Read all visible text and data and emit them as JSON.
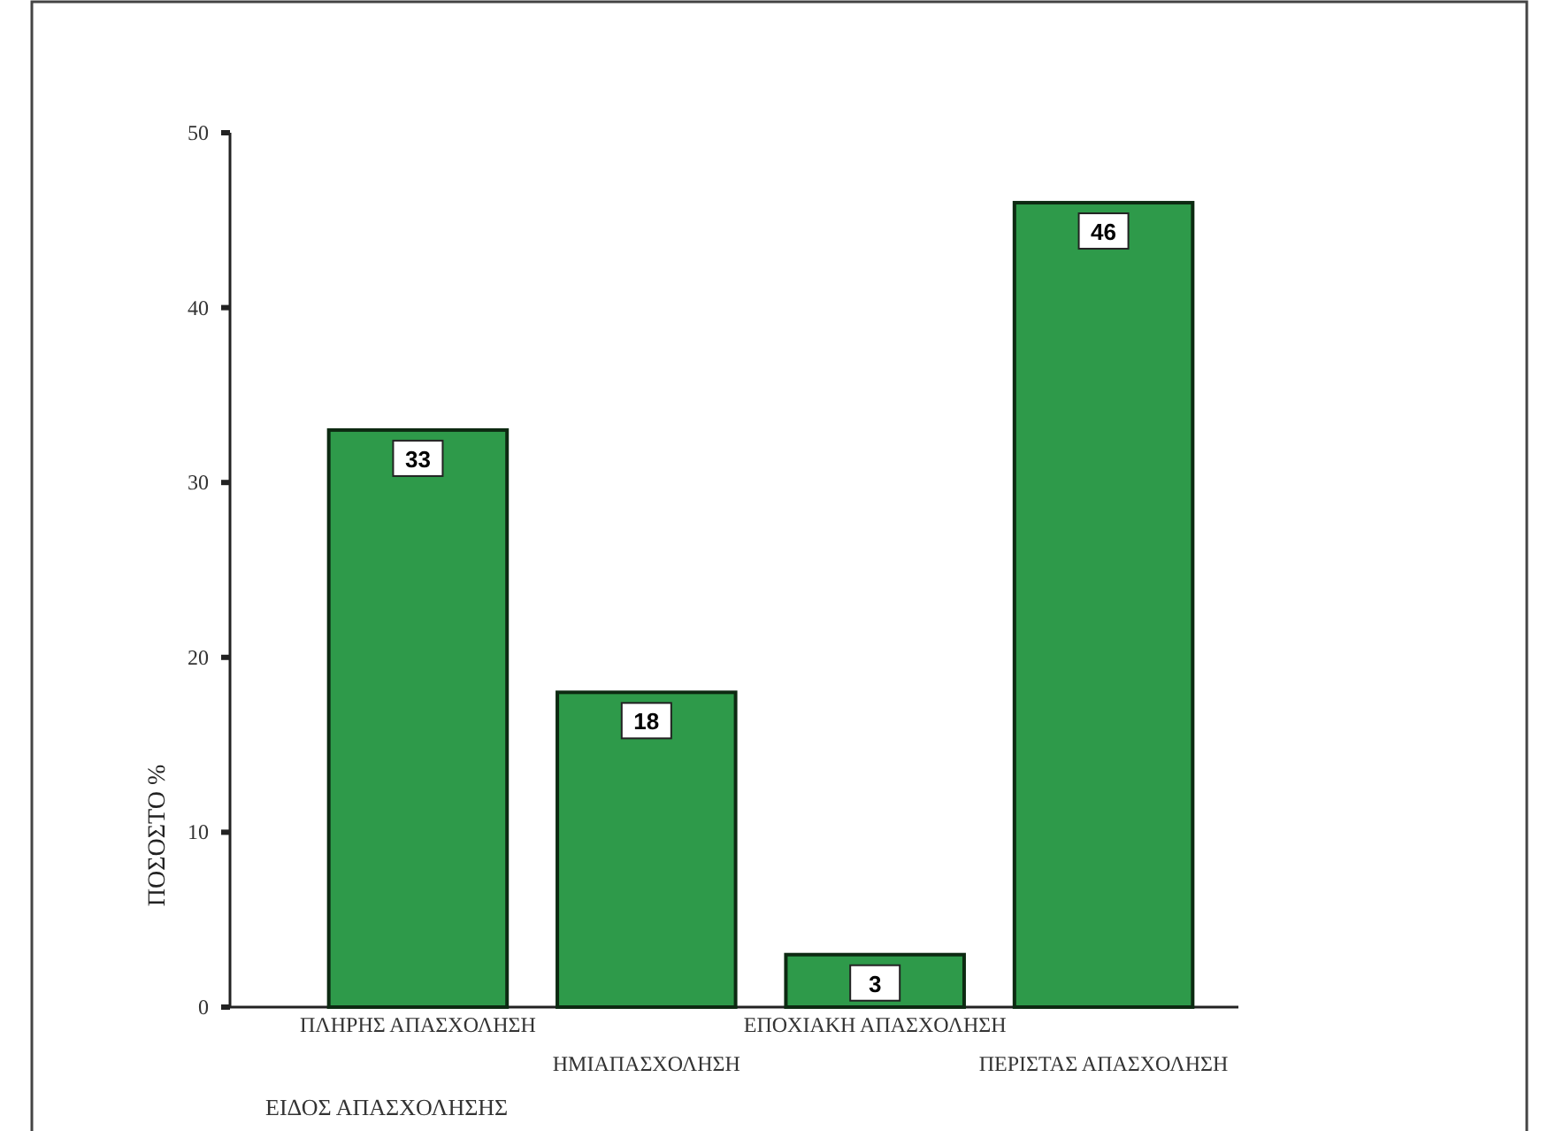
{
  "chart_data": {
    "type": "bar",
    "xlabel": "ΕΙΔΟΣ ΑΠΑΣΧΟΛΗΣΗΣ",
    "ylabel": "ΠΟΣΟΣΤΟ %",
    "categories": [
      "ΠΛΗΡΗΣ ΑΠΑΣΧΟΛΗΣΗ",
      "ΗΜΙΑΠΑΣΧΟΛΗΣΗ",
      "ΕΠΟΧΙΑΚΗ ΑΠΑΣΧΟΛΗΣΗ",
      "ΠΕΡΙΣΤΑΣ ΑΠΑΣΧΟΛΗΣΗ"
    ],
    "values": [
      33,
      18,
      3,
      46
    ],
    "color": "#2e9a4a",
    "ylim": [
      0,
      50
    ],
    "yticks": [
      0,
      10,
      20,
      30,
      40,
      50
    ],
    "data_labels": true
  }
}
